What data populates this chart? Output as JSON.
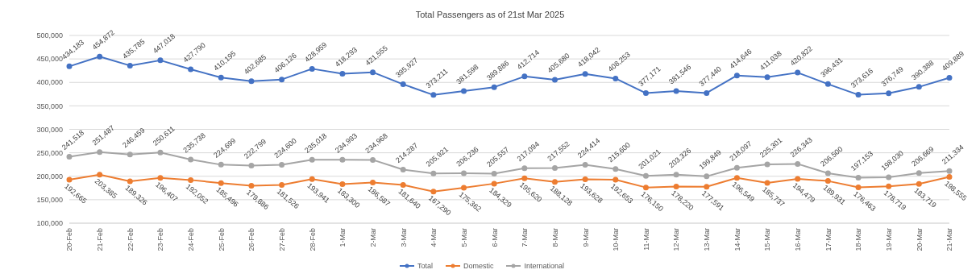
{
  "chart_data": {
    "type": "line",
    "title": "Total Passengers as of 21st Mar 2025",
    "categories": [
      "20-Feb",
      "21-Feb",
      "22-Feb",
      "23-Feb",
      "24-Feb",
      "25-Feb",
      "26-Feb",
      "27-Feb",
      "28-Feb",
      "1-Mar",
      "2-Mar",
      "3-Mar",
      "4-Mar",
      "5-Mar",
      "6-Mar",
      "7-Mar",
      "8-Mar",
      "9-Mar",
      "10-Mar",
      "11-Mar",
      "12-Mar",
      "13-Mar",
      "14-Mar",
      "15-Mar",
      "16-Mar",
      "17-Mar",
      "18-Mar",
      "19-Mar",
      "20-Mar",
      "21-Mar"
    ],
    "series": [
      {
        "name": "Total",
        "color": "#4472c4",
        "values": [
          434183,
          454872,
          435785,
          447018,
          427790,
          410195,
          402685,
          406126,
          428959,
          418293,
          421555,
          395927,
          373211,
          381598,
          389886,
          412714,
          405680,
          418042,
          408253,
          377171,
          381546,
          377440,
          414646,
          411038,
          420822,
          396431,
          373616,
          376749,
          390388,
          409889
        ],
        "value_labels": [
          "434,183",
          "454,872",
          "435,785",
          "447,018",
          "427,790",
          "410,195",
          "402,685",
          "406,126",
          "428,959",
          "418,293",
          "421,555",
          "395,927",
          "373,211",
          "381,598",
          "389,886",
          "412,714",
          "405,680",
          "418,042",
          "408,253",
          "377,171",
          "381,546",
          "377,440",
          "414,646",
          "411,038",
          "420,822",
          "396,431",
          "373,616",
          "376,749",
          "390,388",
          "409,889"
        ]
      },
      {
        "name": "Domestic",
        "color": "#ed7d31",
        "values": [
          192665,
          203385,
          189326,
          196407,
          192052,
          185496,
          179886,
          181526,
          193941,
          183300,
          186587,
          181640,
          167290,
          175362,
          184329,
          195620,
          188128,
          193628,
          192653,
          176150,
          178220,
          177591,
          196549,
          185737,
          194479,
          189931,
          176463,
          178719,
          183719,
          198555
        ],
        "value_labels": [
          "192,665",
          "203,385",
          "189,326",
          "196,407",
          "192,052",
          "185,496",
          "179,886",
          "181,526",
          "193,941",
          "183,300",
          "186,587",
          "181,640",
          "167,290",
          "175,362",
          "184,329",
          "195,620",
          "188,128",
          "193,628",
          "192,653",
          "176,150",
          "178,220",
          "177,591",
          "196,549",
          "185,737",
          "194,479",
          "189,931",
          "176,463",
          "178,719",
          "183,719",
          "198,555"
        ]
      },
      {
        "name": "International",
        "color": "#a5a5a5",
        "values": [
          241518,
          251487,
          246459,
          250611,
          235738,
          224699,
          222799,
          224600,
          235018,
          234993,
          234968,
          214287,
          205921,
          206236,
          205557,
          217094,
          217552,
          224414,
          215600,
          201021,
          203326,
          199849,
          218097,
          225301,
          226343,
          206500,
          197153,
          198030,
          206669,
          211334
        ],
        "value_labels": [
          "241,518",
          "251,487",
          "246,459",
          "250,611",
          "235,738",
          "224,699",
          "222,799",
          "224,600",
          "235,018",
          "234,993",
          "234,968",
          "214,287",
          "205,921",
          "206,236",
          "205,557",
          "217,094",
          "217,552",
          "224,414",
          "215,600",
          "201,021",
          "203,326",
          "199,849",
          "218,097",
          "225,301",
          "226,343",
          "206,500",
          "197,153",
          "198,030",
          "206,669",
          "211,334"
        ]
      }
    ],
    "ylim": [
      100000,
      500000
    ],
    "yticks": [
      {
        "value": 100000,
        "label": "100,000"
      },
      {
        "value": 150000,
        "label": "150,000"
      },
      {
        "value": 200000,
        "label": "200,000"
      },
      {
        "value": 250000,
        "label": "250,000"
      },
      {
        "value": 300000,
        "label": "300,000"
      },
      {
        "value": 350000,
        "label": "350,000"
      },
      {
        "value": 400000,
        "label": "400,000"
      },
      {
        "value": 450000,
        "label": "450,000"
      },
      {
        "value": 500000,
        "label": "500,000"
      }
    ],
    "grid": "y",
    "legend": "bottom",
    "marker": "circle",
    "line_style": "solid"
  }
}
